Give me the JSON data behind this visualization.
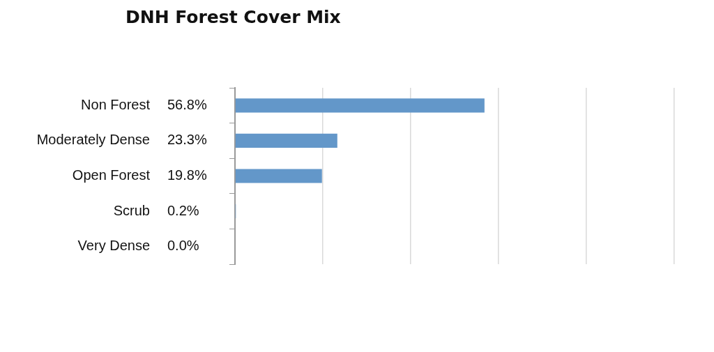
{
  "chart_data": {
    "type": "bar",
    "orientation": "horizontal",
    "title": "DNH Forest Cover Mix",
    "categories": [
      "Non Forest",
      "Moderately Dense",
      "Open Forest",
      "Scrub",
      "Very Dense"
    ],
    "values": [
      56.8,
      23.3,
      19.8,
      0.2,
      0.0
    ],
    "value_labels": [
      "56.8%",
      "23.3%",
      "19.8%",
      "0.2%",
      "0.0%"
    ],
    "color": "#6397c9",
    "xlim": [
      0,
      100
    ],
    "xticks": [
      {
        "value": 0,
        "label": null
      },
      {
        "value": 20,
        "label": null
      },
      {
        "value": 40,
        "label": null
      },
      {
        "value": 60,
        "label": null
      },
      {
        "value": 80,
        "label": null
      },
      {
        "value": 100,
        "label": null
      }
    ],
    "grid": "x"
  }
}
